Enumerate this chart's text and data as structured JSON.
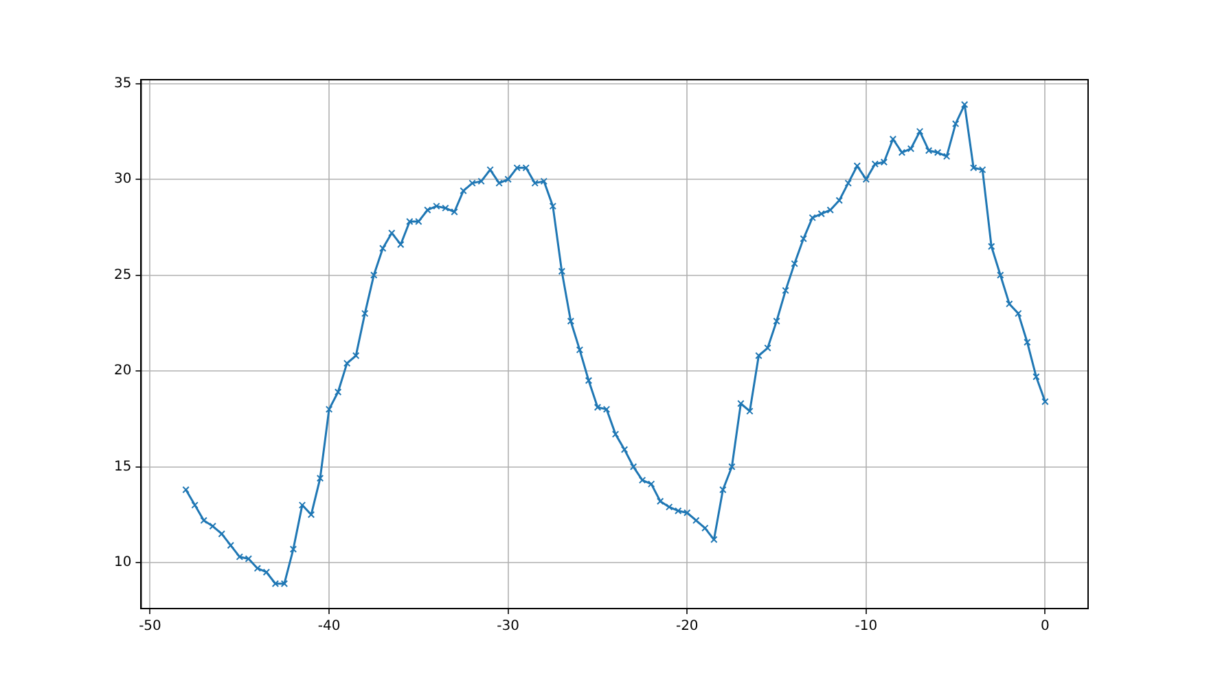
{
  "chart_data": {
    "type": "line",
    "x": [
      -48,
      -47.5,
      -47,
      -46.5,
      -46,
      -45.5,
      -45,
      -44.5,
      -44,
      -43.5,
      -43,
      -42.5,
      -42,
      -41.5,
      -41,
      -40.5,
      -40,
      -39.5,
      -39,
      -38.5,
      -38,
      -37.5,
      -37,
      -36.5,
      -36,
      -35.5,
      -35,
      -34.5,
      -34,
      -33.5,
      -33,
      -32.5,
      -32,
      -31.5,
      -31,
      -30.5,
      -30,
      -29.5,
      -29,
      -28.5,
      -28,
      -27.5,
      -27,
      -26.5,
      -26,
      -25.5,
      -25,
      -24.5,
      -24,
      -23.5,
      -23,
      -22.5,
      -22,
      -21.5,
      -21,
      -20.5,
      -20,
      -19.5,
      -19,
      -18.5,
      -18,
      -17.5,
      -17,
      -16.5,
      -16,
      -15.5,
      -15,
      -14.5,
      -14,
      -13.5,
      -13,
      -12.5,
      -12,
      -11.5,
      -11,
      -10.5,
      -10,
      -9.5,
      -9,
      -8.5,
      -8,
      -7.5,
      -7,
      -6.5,
      -6,
      -5.5,
      -5,
      -4.5,
      -4,
      -3.5,
      -3,
      -2.5,
      -2,
      -1.5,
      -1,
      -0.5,
      0
    ],
    "series": [
      {
        "color": "#1f77b4",
        "values": [
          13.8,
          13.0,
          12.2,
          11.9,
          11.5,
          10.9,
          10.3,
          10.2,
          9.7,
          9.5,
          8.9,
          8.9,
          10.7,
          13.0,
          12.5,
          14.4,
          18.0,
          18.9,
          20.4,
          20.8,
          23.0,
          25.0,
          26.4,
          27.2,
          26.6,
          27.8,
          27.8,
          28.4,
          28.6,
          28.5,
          28.3,
          29.4,
          29.8,
          29.9,
          30.5,
          29.8,
          30.0,
          30.6,
          30.6,
          29.8,
          29.9,
          28.6,
          25.2,
          22.6,
          21.1,
          19.5,
          18.1,
          18.0,
          16.7,
          15.9,
          15.0,
          14.3,
          14.1,
          13.2,
          12.9,
          12.7,
          12.6,
          12.2,
          11.8,
          11.2,
          13.8,
          15.0,
          18.3,
          17.9,
          20.8,
          21.2,
          22.6,
          24.2,
          25.6,
          26.9,
          28.0,
          28.2,
          28.4,
          28.9,
          29.8,
          30.7,
          30.0,
          30.8,
          30.9,
          32.1,
          31.4,
          31.6,
          32.5,
          31.5,
          31.4,
          31.2,
          32.9,
          33.9,
          30.6,
          30.5,
          26.5,
          25.0,
          23.5,
          23.0,
          21.5,
          19.7,
          18.4
        ]
      }
    ],
    "xlim": [
      -50.5,
      2.4
    ],
    "xticks": [
      -50,
      -40,
      -30,
      -20,
      -10,
      0
    ],
    "ylim": [
      7.6,
      35.2
    ],
    "yticks": [
      10,
      15,
      20,
      25,
      30,
      35
    ],
    "grid": true,
    "marker": "cross",
    "line_style": "solid",
    "legend": false
  }
}
